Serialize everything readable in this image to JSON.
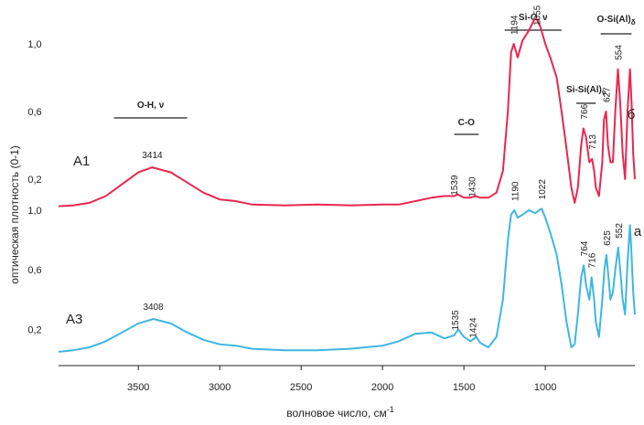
{
  "chart_data": {
    "type": "line",
    "xlabel": "волновое число, см",
    "xlabel_sup": "-1",
    "ylabel": "оптическая плотность (0-1)",
    "x_ticks": [
      3500,
      3000,
      2500,
      2000,
      1500,
      1000
    ],
    "x_range": [
      3990,
      450
    ],
    "y_tick_labels": [
      "1,0",
      "0,6",
      "0,2"
    ],
    "band_labels": [
      {
        "text": "O-H, ν",
        "x_from": 3650,
        "x_to": 3200
      },
      {
        "text": "C-O",
        "x_from": 1560,
        "x_to": 1410
      },
      {
        "text": "Si-O, ν",
        "x_from": 1250,
        "x_to": 900
      },
      {
        "text": "Si-Si(Al)",
        "sub": "ν",
        "x_from": 810,
        "x_to": 690
      },
      {
        "text": "O-Si(Al)",
        "sub": "δ",
        "x_from": 660,
        "x_to": 470
      }
    ],
    "series": [
      {
        "name": "A1",
        "side_label": "б",
        "color": "#e8274f",
        "ticks": [
          {
            "label": "1,0",
            "y": 1.0
          },
          {
            "label": "0,6",
            "y": 0.6
          },
          {
            "label": "0,2",
            "y": 0.2
          }
        ],
        "peaks": [
          {
            "x": 3414,
            "label": "3414"
          },
          {
            "x": 1539,
            "label": "1539"
          },
          {
            "x": 1430,
            "label": "1430"
          },
          {
            "x": 1194,
            "label": "1194"
          },
          {
            "x": 1055,
            "label": "1055"
          },
          {
            "x": 766,
            "label": "766"
          },
          {
            "x": 713,
            "label": "713"
          },
          {
            "x": 627,
            "label": "627"
          },
          {
            "x": 554,
            "label": "554"
          }
        ],
        "points": [
          [
            3990,
            0.04
          ],
          [
            3900,
            0.045
          ],
          [
            3800,
            0.06
          ],
          [
            3700,
            0.1
          ],
          [
            3600,
            0.17
          ],
          [
            3500,
            0.24
          ],
          [
            3414,
            0.27
          ],
          [
            3300,
            0.24
          ],
          [
            3200,
            0.18
          ],
          [
            3100,
            0.12
          ],
          [
            3000,
            0.08
          ],
          [
            2900,
            0.07
          ],
          [
            2800,
            0.05
          ],
          [
            2600,
            0.045
          ],
          [
            2400,
            0.05
          ],
          [
            2200,
            0.045
          ],
          [
            2000,
            0.05
          ],
          [
            1900,
            0.05
          ],
          [
            1800,
            0.07
          ],
          [
            1700,
            0.09
          ],
          [
            1620,
            0.1
          ],
          [
            1560,
            0.1
          ],
          [
            1539,
            0.11
          ],
          [
            1500,
            0.09
          ],
          [
            1460,
            0.09
          ],
          [
            1430,
            0.1
          ],
          [
            1400,
            0.09
          ],
          [
            1350,
            0.09
          ],
          [
            1300,
            0.12
          ],
          [
            1260,
            0.25
          ],
          [
            1230,
            0.6
          ],
          [
            1210,
            0.95
          ],
          [
            1194,
            1.0
          ],
          [
            1170,
            0.92
          ],
          [
            1140,
            1.02
          ],
          [
            1100,
            1.08
          ],
          [
            1070,
            1.14
          ],
          [
            1055,
            1.15
          ],
          [
            1030,
            1.1
          ],
          [
            1000,
            1.0
          ],
          [
            970,
            0.92
          ],
          [
            930,
            0.8
          ],
          [
            900,
            0.6
          ],
          [
            870,
            0.38
          ],
          [
            840,
            0.15
          ],
          [
            820,
            0.06
          ],
          [
            800,
            0.15
          ],
          [
            780,
            0.4
          ],
          [
            766,
            0.5
          ],
          [
            750,
            0.45
          ],
          [
            730,
            0.3
          ],
          [
            713,
            0.32
          ],
          [
            700,
            0.25
          ],
          [
            690,
            0.15
          ],
          [
            670,
            0.1
          ],
          [
            650,
            0.3
          ],
          [
            640,
            0.55
          ],
          [
            627,
            0.6
          ],
          [
            615,
            0.4
          ],
          [
            600,
            0.3
          ],
          [
            585,
            0.3
          ],
          [
            570,
            0.6
          ],
          [
            554,
            0.85
          ],
          [
            540,
            0.65
          ],
          [
            525,
            0.35
          ],
          [
            510,
            0.2
          ],
          [
            495,
            0.6
          ],
          [
            480,
            0.85
          ],
          [
            470,
            0.65
          ],
          [
            460,
            0.35
          ],
          [
            450,
            0.2
          ]
        ]
      },
      {
        "name": "A3",
        "side_label": "a",
        "color": "#3fb6e2",
        "ticks": [
          {
            "label": "1,0",
            "y": 1.0
          },
          {
            "label": "0,6",
            "y": 0.6
          },
          {
            "label": "0,2",
            "y": 0.2
          }
        ],
        "peaks": [
          {
            "x": 3408,
            "label": "3408"
          },
          {
            "x": 1535,
            "label": "1535"
          },
          {
            "x": 1424,
            "label": "1424"
          },
          {
            "x": 1190,
            "label": "1190"
          },
          {
            "x": 1022,
            "label": "1022"
          },
          {
            "x": 764,
            "label": "764"
          },
          {
            "x": 716,
            "label": "716"
          },
          {
            "x": 625,
            "label": "625"
          },
          {
            "x": 552,
            "label": "552"
          }
        ],
        "points": [
          [
            3990,
            0.05
          ],
          [
            3900,
            0.06
          ],
          [
            3800,
            0.08
          ],
          [
            3700,
            0.12
          ],
          [
            3600,
            0.18
          ],
          [
            3500,
            0.24
          ],
          [
            3408,
            0.27
          ],
          [
            3300,
            0.24
          ],
          [
            3200,
            0.18
          ],
          [
            3100,
            0.13
          ],
          [
            3000,
            0.1
          ],
          [
            2900,
            0.09
          ],
          [
            2800,
            0.07
          ],
          [
            2600,
            0.06
          ],
          [
            2400,
            0.06
          ],
          [
            2200,
            0.07
          ],
          [
            2000,
            0.09
          ],
          [
            1900,
            0.12
          ],
          [
            1800,
            0.17
          ],
          [
            1700,
            0.18
          ],
          [
            1620,
            0.14
          ],
          [
            1560,
            0.16
          ],
          [
            1535,
            0.2
          ],
          [
            1500,
            0.15
          ],
          [
            1460,
            0.12
          ],
          [
            1424,
            0.15
          ],
          [
            1400,
            0.11
          ],
          [
            1350,
            0.08
          ],
          [
            1300,
            0.15
          ],
          [
            1260,
            0.4
          ],
          [
            1230,
            0.8
          ],
          [
            1210,
            0.97
          ],
          [
            1190,
            1.0
          ],
          [
            1170,
            0.95
          ],
          [
            1140,
            0.97
          ],
          [
            1100,
            1.0
          ],
          [
            1060,
            0.98
          ],
          [
            1040,
            1.0
          ],
          [
            1022,
            1.01
          ],
          [
            1000,
            0.95
          ],
          [
            970,
            0.85
          ],
          [
            930,
            0.7
          ],
          [
            900,
            0.5
          ],
          [
            870,
            0.25
          ],
          [
            840,
            0.08
          ],
          [
            820,
            0.1
          ],
          [
            800,
            0.3
          ],
          [
            780,
            0.55
          ],
          [
            764,
            0.63
          ],
          [
            750,
            0.5
          ],
          [
            730,
            0.4
          ],
          [
            716,
            0.55
          ],
          [
            700,
            0.4
          ],
          [
            690,
            0.25
          ],
          [
            670,
            0.15
          ],
          [
            650,
            0.4
          ],
          [
            637,
            0.6
          ],
          [
            625,
            0.7
          ],
          [
            612,
            0.55
          ],
          [
            600,
            0.4
          ],
          [
            585,
            0.45
          ],
          [
            570,
            0.6
          ],
          [
            552,
            0.75
          ],
          [
            540,
            0.6
          ],
          [
            525,
            0.4
          ],
          [
            510,
            0.3
          ],
          [
            495,
            0.65
          ],
          [
            480,
            0.9
          ],
          [
            470,
            0.7
          ],
          [
            460,
            0.45
          ],
          [
            450,
            0.3
          ]
        ]
      }
    ]
  }
}
